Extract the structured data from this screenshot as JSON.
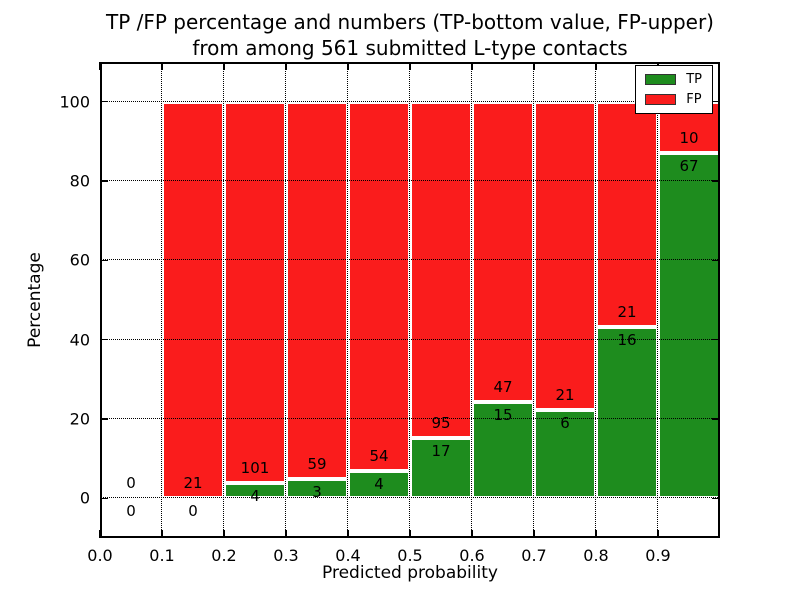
{
  "chart_data": {
    "type": "bar",
    "stacked": true,
    "title_lines": [
      "TP /FP percentage and numbers (TP-bottom value, FP-upper)",
      "from among 561 submitted L-type contacts"
    ],
    "xlabel": "Predicted probability",
    "ylabel": "Percentage",
    "xlim": [
      0.0,
      1.0
    ],
    "ylim": [
      -10,
      110
    ],
    "xticks": [
      0.0,
      0.1,
      0.2,
      0.3,
      0.4,
      0.5,
      0.6,
      0.7,
      0.8,
      0.9
    ],
    "yticks": [
      0,
      20,
      40,
      60,
      80,
      100
    ],
    "grid": {
      "style": "dotted",
      "color": "#000000",
      "drawn_above_bars": true
    },
    "colors": {
      "tp": "#1e8c1e",
      "fp": "#fa1c1c",
      "bar_edge": "#ffffff",
      "spine": "#000000"
    },
    "bar_width": 0.1,
    "total_contacts": 561,
    "legend": {
      "position": "upper-right",
      "entries": [
        {
          "label": "TP",
          "color": "#1e8c1e"
        },
        {
          "label": "FP",
          "color": "#fa1c1c"
        }
      ]
    },
    "bins": [
      {
        "x_start": 0.0,
        "x_end": 0.1,
        "tp_count": 0,
        "fp_count": 0,
        "tp_pct": 0,
        "fp_pct": 0
      },
      {
        "x_start": 0.1,
        "x_end": 0.2,
        "tp_count": 0,
        "fp_count": 21,
        "tp_pct": 0,
        "fp_pct": 100
      },
      {
        "x_start": 0.2,
        "x_end": 0.3,
        "tp_count": 4,
        "fp_count": 101,
        "tp_pct": 3.81,
        "fp_pct": 96.19
      },
      {
        "x_start": 0.3,
        "x_end": 0.4,
        "tp_count": 3,
        "fp_count": 59,
        "tp_pct": 4.84,
        "fp_pct": 95.16
      },
      {
        "x_start": 0.4,
        "x_end": 0.5,
        "tp_count": 4,
        "fp_count": 54,
        "tp_pct": 6.9,
        "fp_pct": 93.1
      },
      {
        "x_start": 0.5,
        "x_end": 0.6,
        "tp_count": 17,
        "fp_count": 95,
        "tp_pct": 15.18,
        "fp_pct": 84.82
      },
      {
        "x_start": 0.6,
        "x_end": 0.7,
        "tp_count": 15,
        "fp_count": 47,
        "tp_pct": 24.19,
        "fp_pct": 75.81
      },
      {
        "x_start": 0.7,
        "x_end": 0.8,
        "tp_count": 6,
        "fp_count": 21,
        "tp_pct": 22.22,
        "fp_pct": 77.78
      },
      {
        "x_start": 0.8,
        "x_end": 0.9,
        "tp_count": 16,
        "fp_count": 21,
        "tp_pct": 43.24,
        "fp_pct": 56.76
      },
      {
        "x_start": 0.9,
        "x_end": 1.0,
        "tp_count": 67,
        "fp_count": 10,
        "tp_pct": 87.01,
        "fp_pct": 12.99
      }
    ]
  }
}
